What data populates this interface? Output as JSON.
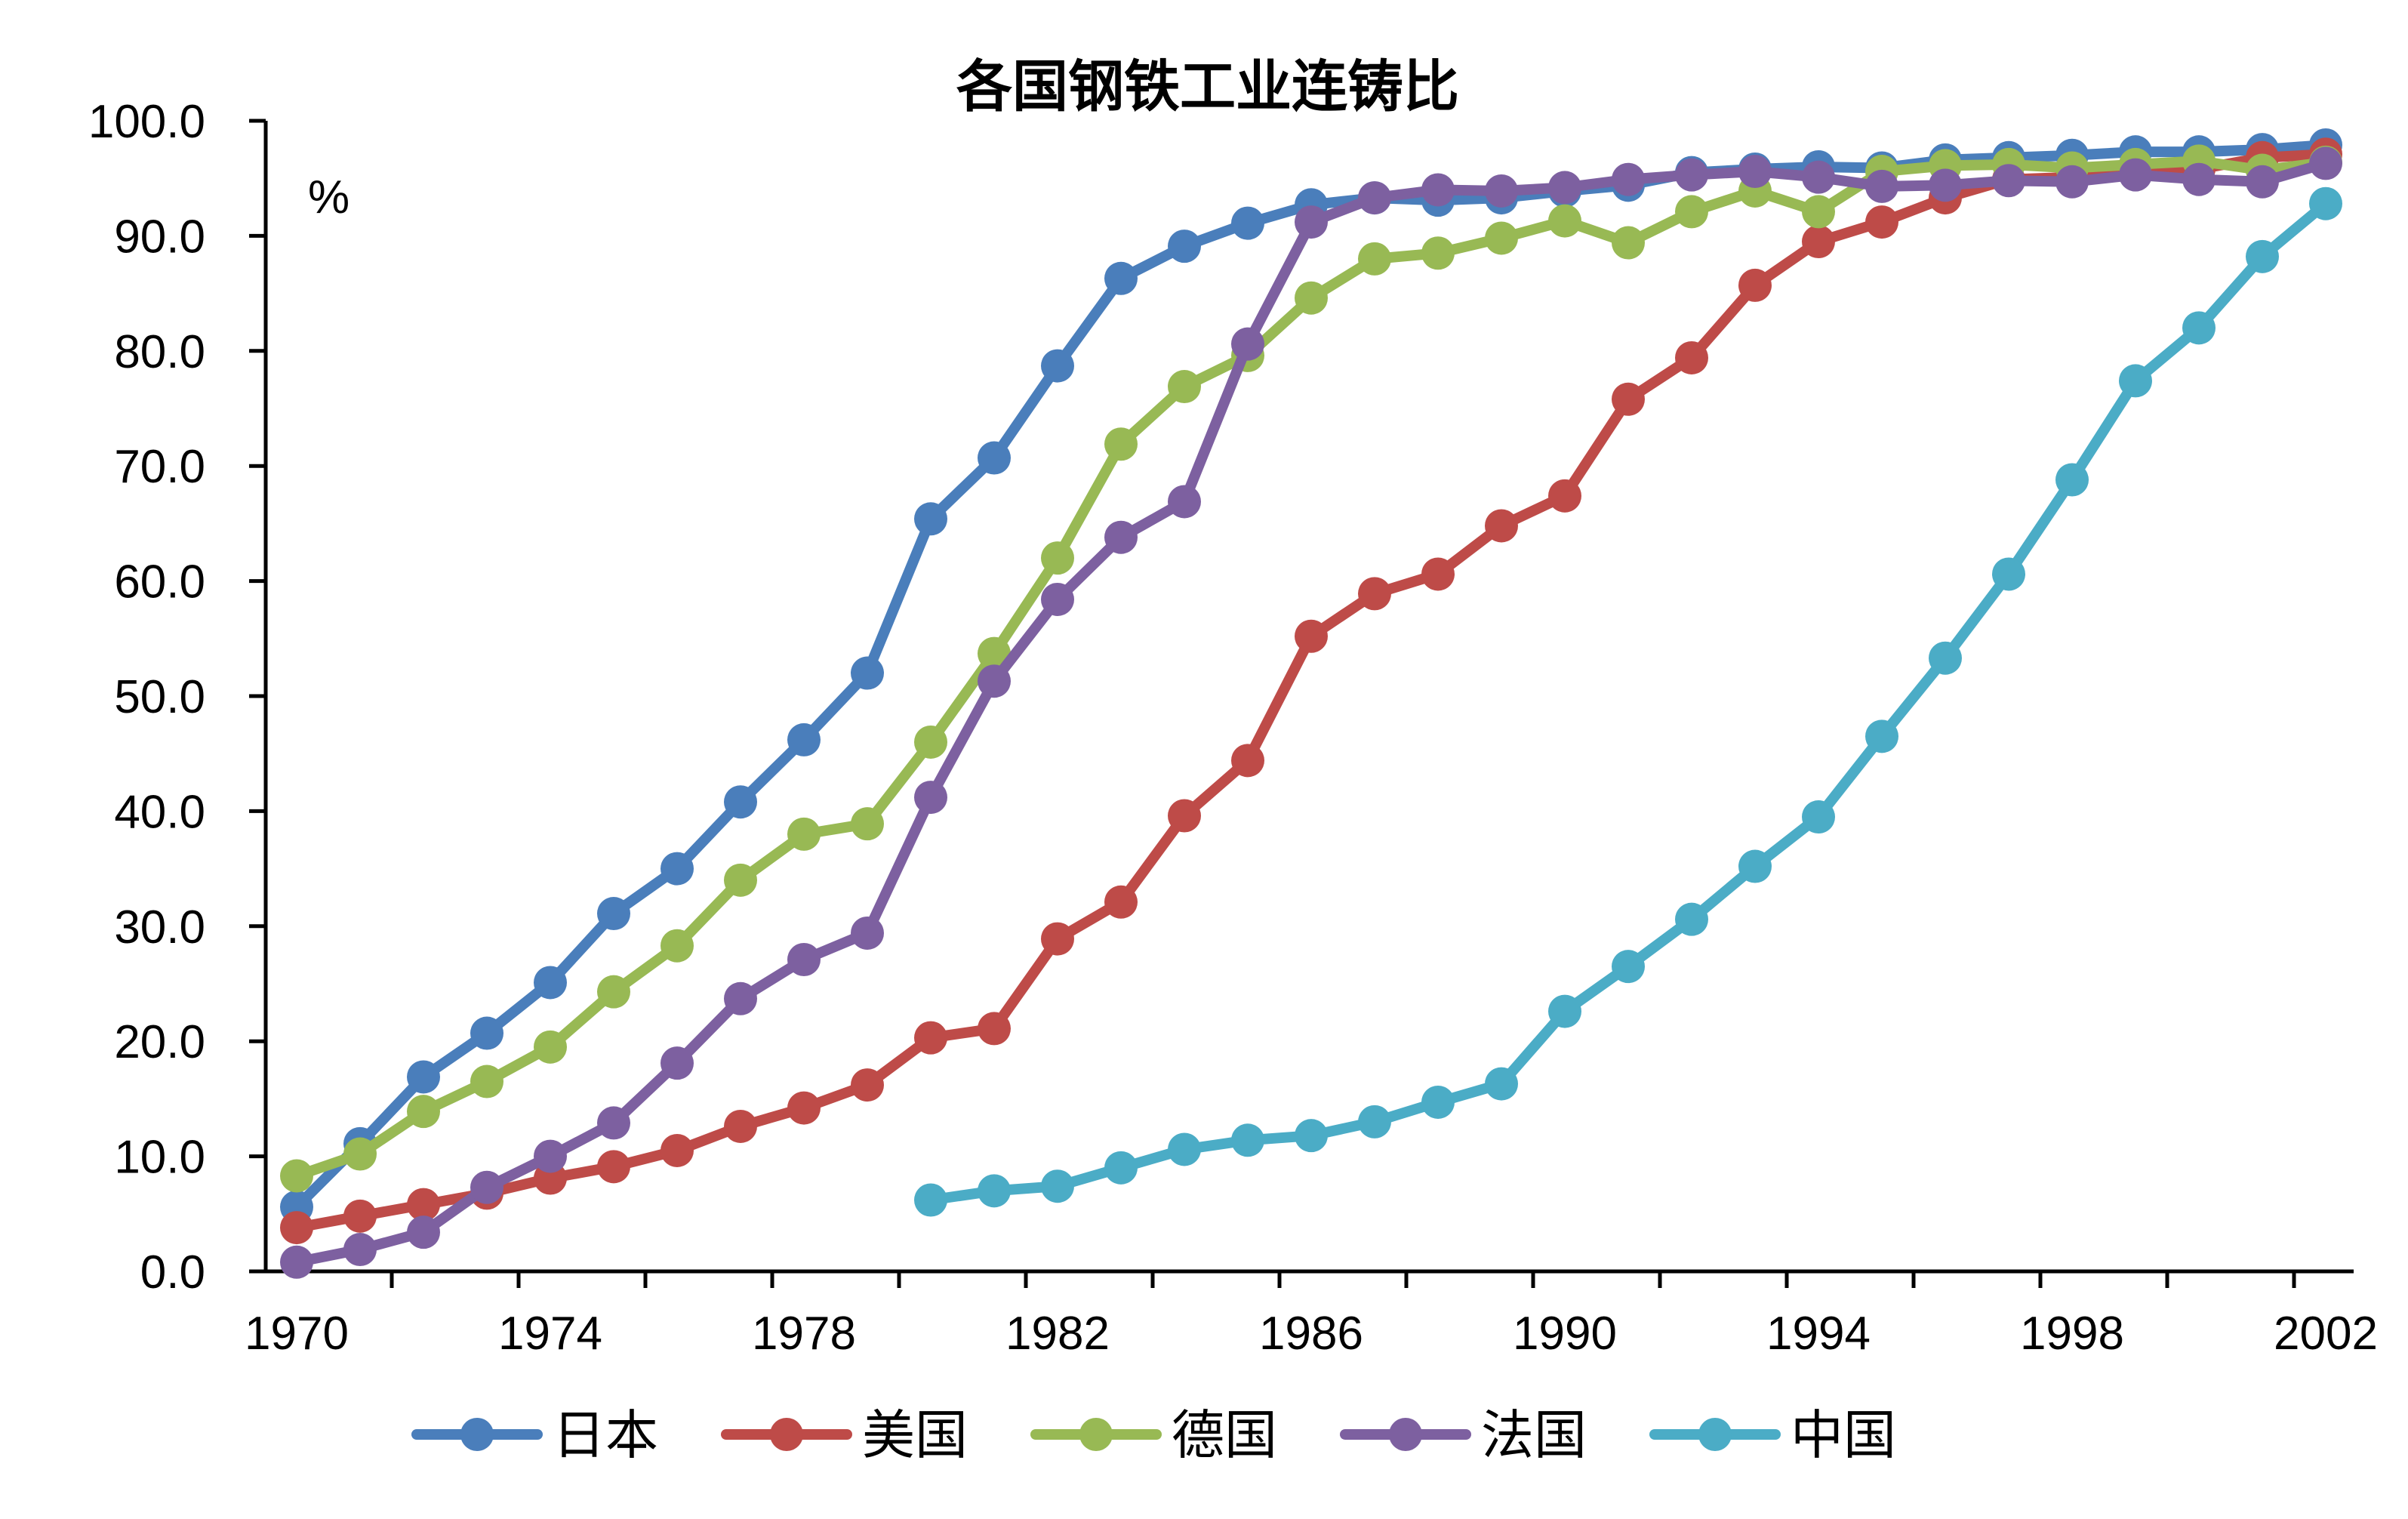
{
  "chart_data": {
    "type": "line",
    "title": "各国钢铁工业连铸比",
    "ylabel": "%",
    "xlabel": "",
    "xlim": [
      1970,
      2002
    ],
    "ylim": [
      0,
      100
    ],
    "y_ticks": [
      "0.0",
      "10.0",
      "20.0",
      "30.0",
      "40.0",
      "50.0",
      "60.0",
      "70.0",
      "80.0",
      "90.0",
      "100.0"
    ],
    "x_tick_labels": [
      "1970",
      "1974",
      "1978",
      "1982",
      "1986",
      "1990",
      "1994",
      "1998",
      "2002"
    ],
    "legend_position": "bottom",
    "series": [
      {
        "name": "日本",
        "color": "#4A7EBB",
        "x": [
          1970,
          1971,
          1972,
          1973,
          1974,
          1975,
          1976,
          1977,
          1978,
          1979,
          1980,
          1981,
          1982,
          1983,
          1984,
          1985,
          1986,
          1987,
          1988,
          1989,
          1990,
          1991,
          1992,
          1993,
          1994,
          1995,
          1996,
          1997,
          1998,
          1999,
          2000,
          2001,
          2002
        ],
        "values": [
          5.6,
          11.1,
          16.9,
          20.7,
          25.1,
          31.1,
          35.0,
          40.8,
          46.2,
          52.0,
          65.4,
          70.7,
          78.7,
          86.3,
          89.1,
          91.1,
          92.7,
          93.3,
          93.1,
          93.3,
          93.9,
          94.4,
          95.5,
          95.8,
          96.0,
          95.9,
          96.6,
          96.8,
          97.0,
          97.3,
          97.3,
          97.5,
          97.9
        ]
      },
      {
        "name": "美国",
        "color": "#BE4B48",
        "x": [
          1970,
          1971,
          1972,
          1973,
          1974,
          1975,
          1976,
          1977,
          1978,
          1979,
          1980,
          1981,
          1982,
          1983,
          1984,
          1985,
          1986,
          1987,
          1988,
          1989,
          1990,
          1991,
          1992,
          1993,
          1994,
          1995,
          1996,
          1997,
          1998,
          1999,
          2000,
          2001,
          2002
        ],
        "values": [
          3.8,
          4.8,
          5.8,
          6.8,
          8.1,
          9.1,
          10.5,
          12.6,
          14.2,
          16.2,
          20.3,
          21.1,
          28.9,
          32.1,
          39.6,
          44.4,
          55.2,
          58.9,
          60.6,
          64.8,
          67.4,
          75.8,
          79.4,
          85.7,
          89.5,
          91.2,
          93.3,
          94.9,
          95.1,
          95.6,
          95.8,
          96.8,
          97.1
        ]
      },
      {
        "name": "德国",
        "color": "#98B954",
        "x": [
          1970,
          1971,
          1972,
          1973,
          1974,
          1975,
          1976,
          1977,
          1978,
          1979,
          1980,
          1981,
          1982,
          1983,
          1984,
          1985,
          1986,
          1987,
          1988,
          1989,
          1990,
          1991,
          1992,
          1993,
          1994,
          1995,
          1996,
          1997,
          1998,
          1999,
          2000,
          2001,
          2002
        ],
        "values": [
          8.3,
          10.2,
          13.9,
          16.5,
          19.5,
          24.3,
          28.3,
          34.0,
          38.0,
          38.9,
          46.0,
          53.7,
          62.0,
          71.9,
          76.9,
          79.6,
          84.6,
          88.0,
          88.5,
          89.8,
          91.3,
          89.4,
          92.1,
          93.9,
          92.1,
          95.6,
          96.1,
          96.2,
          95.9,
          96.2,
          96.5,
          95.7,
          96.4
        ]
      },
      {
        "name": "法国",
        "color": "#7D60A0",
        "x": [
          1970,
          1971,
          1972,
          1973,
          1974,
          1975,
          1976,
          1977,
          1978,
          1979,
          1980,
          1981,
          1982,
          1983,
          1984,
          1985,
          1986,
          1987,
          1988,
          1989,
          1990,
          1991,
          1992,
          1993,
          1994,
          1995,
          1996,
          1997,
          1998,
          1999,
          2000,
          2001,
          2002
        ],
        "values": [
          0.8,
          1.9,
          3.4,
          7.3,
          10.0,
          12.9,
          18.1,
          23.7,
          27.1,
          29.4,
          41.2,
          51.3,
          58.4,
          63.8,
          66.9,
          80.6,
          91.2,
          93.3,
          94.0,
          93.9,
          94.2,
          94.9,
          95.3,
          95.6,
          95.1,
          94.3,
          94.4,
          94.8,
          94.7,
          95.3,
          94.9,
          94.7,
          96.3
        ]
      },
      {
        "name": "中国",
        "color": "#4BACC6",
        "x": [
          1980,
          1981,
          1982,
          1983,
          1984,
          1985,
          1986,
          1987,
          1988,
          1989,
          1990,
          1991,
          1992,
          1993,
          1994,
          1995,
          1996,
          1997,
          1998,
          1999,
          2000,
          2001,
          2002
        ],
        "values": [
          6.2,
          7.0,
          7.4,
          9.0,
          10.6,
          11.4,
          11.8,
          13.0,
          14.7,
          16.3,
          22.6,
          26.5,
          30.6,
          35.2,
          39.5,
          46.5,
          53.3,
          60.6,
          68.8,
          77.4,
          82.0,
          88.2,
          92.8
        ]
      }
    ]
  }
}
